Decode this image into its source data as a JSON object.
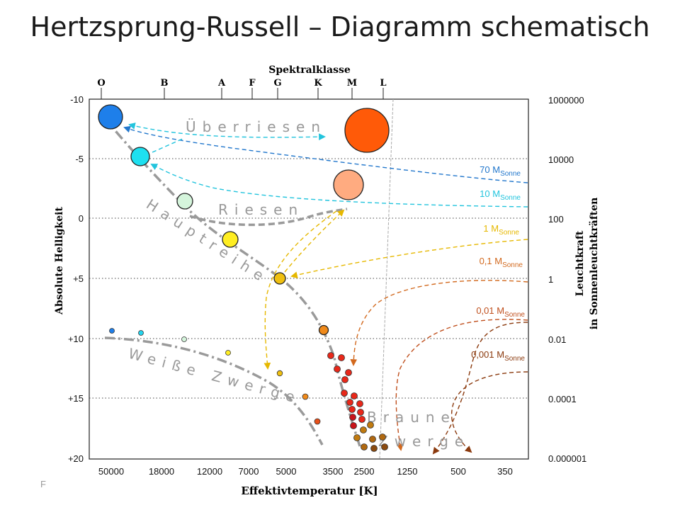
{
  "title": "Hertzsprung-Russell – Diagramm schematisch",
  "footer": "F",
  "top_axis_label": "Spektralklasse",
  "spectral_classes": [
    "O",
    "B",
    "A",
    "F",
    "G",
    "K",
    "M",
    "L"
  ],
  "bottom_axis_label": "Effektivtemperatur [K]",
  "temperatures": [
    "50000",
    "18000",
    "12000",
    "7000",
    "5000",
    "3500",
    "2500",
    "1250",
    "500",
    "350"
  ],
  "left_axis_label": "Absolute Helligkeit",
  "magnitudes": [
    "-10",
    "-5",
    "0",
    "+5",
    "+10",
    "+15",
    "+20"
  ],
  "right_axis_label_line1": "Leuchtkraft",
  "right_axis_label_line2": "in Sonnenleuchtkräften",
  "luminosities": [
    "1000000",
    "10000",
    "100",
    "1",
    "0.01",
    "0.0001",
    "0.000001"
  ],
  "regions": {
    "supergiants": "Überriesen",
    "giants": "Riesen",
    "main_sequence": "Hauptreihe",
    "white_dwarfs": "Weiße Zwerge",
    "brown_dwarfs_1": "Braune",
    "brown_dwarfs_2": "Zwerge"
  },
  "mass_tracks": [
    {
      "main": "70 M",
      "sub": "Sonne",
      "color": "#2277cc"
    },
    {
      "main": "10 M",
      "sub": "Sonne",
      "color": "#22c4dd"
    },
    {
      "main": "1 M",
      "sub": "Sonne",
      "color": "#e6b800"
    },
    {
      "main": "0,1 M",
      "sub": "Sonne",
      "color": "#d2691e"
    },
    {
      "main": "0,01 M",
      "sub": "Sonne",
      "color": "#c0501e"
    },
    {
      "main": "0,001 M",
      "sub": "Sonne",
      "color": "#8b3a0e"
    }
  ]
}
